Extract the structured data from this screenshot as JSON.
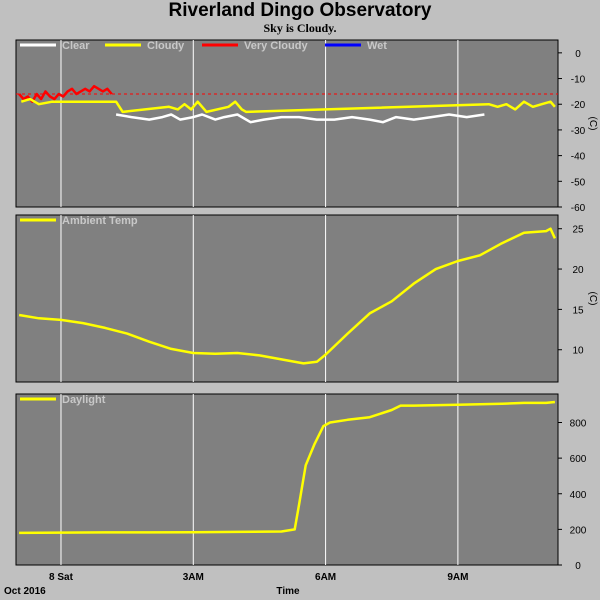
{
  "header": {
    "title": "Riverland Dingo Observatory",
    "subtitle": "Sky is Cloudy."
  },
  "colors": {
    "panel_bg": "#808080",
    "page_bg": "#c0c0c0",
    "clear": "#ffffff",
    "cloudy": "#ffff00",
    "very_cloudy": "#ff0000",
    "wet": "#0000ff",
    "ambient": "#ffff00",
    "daylight": "#ffff00",
    "grid": "#ffffff",
    "threshold": "#ff0000"
  },
  "x_axis": {
    "label": "Time",
    "date_label": "Oct 2016",
    "ticks": [
      {
        "t": 0,
        "label": "8 Sat"
      },
      {
        "t": 3,
        "label": "3AM"
      },
      {
        "t": 6,
        "label": "6AM"
      },
      {
        "t": 9,
        "label": "9AM"
      }
    ],
    "range_hours": [
      -1.02,
      11.27
    ]
  },
  "chart_data": [
    {
      "type": "line",
      "legend": [
        "Clear",
        "Cloudy",
        "Very Cloudy",
        "Wet"
      ],
      "unit": "(C)",
      "ylim": [
        -60,
        5
      ],
      "yticks": [
        0,
        -10,
        -20,
        -30,
        -40,
        -50,
        -60
      ],
      "threshold": -16,
      "series": [
        {
          "name": "Very Cloudy",
          "x": [
            -0.95,
            -0.85,
            -0.75,
            -0.65,
            -0.55,
            -0.45,
            -0.35,
            -0.25,
            -0.15,
            -0.05,
            0.05,
            0.15,
            0.25,
            0.35,
            0.45,
            0.55,
            0.65,
            0.75,
            0.85,
            0.95,
            1.05,
            1.15
          ],
          "y": [
            -16,
            -18,
            -17,
            -19,
            -16,
            -18,
            -15,
            -17,
            -18,
            -16,
            -17,
            -15,
            -14,
            -16,
            -15,
            -14,
            -15,
            -13,
            -14,
            -15,
            -14,
            -16
          ]
        },
        {
          "name": "Cloudy",
          "x": [
            -0.9,
            -0.7,
            -0.5,
            -0.2,
            1.25,
            1.4,
            2.45,
            2.65,
            2.8,
            2.95,
            3.1,
            3.3,
            3.8,
            3.95,
            4.1,
            4.2,
            9.7,
            9.9,
            10.1,
            10.3,
            10.5,
            10.7,
            10.9,
            11.1,
            11.2
          ],
          "y": [
            -19,
            -18,
            -20,
            -19,
            -19,
            -23,
            -21,
            -22,
            -20,
            -22,
            -19,
            -23,
            -21,
            -19,
            -22,
            -23,
            -20,
            -21,
            -20,
            -22,
            -19,
            -21,
            -20,
            -19,
            -21
          ]
        },
        {
          "name": "Clear",
          "x": [
            1.25,
            1.6,
            2.0,
            2.3,
            2.5,
            2.7,
            3.0,
            3.2,
            3.5,
            3.7,
            4.0,
            4.3,
            4.6,
            5.0,
            5.4,
            5.8,
            6.2,
            6.6,
            7.0,
            7.3,
            7.6,
            8.0,
            8.4,
            8.8,
            9.2,
            9.6
          ],
          "y": [
            -24,
            -25,
            -26,
            -25,
            -24,
            -26,
            -25,
            -24,
            -26,
            -25,
            -24,
            -27,
            -26,
            -25,
            -25,
            -26,
            -26,
            -25,
            -26,
            -27,
            -25,
            -26,
            -25,
            -24,
            -25,
            -24
          ]
        },
        {
          "name": "Wet",
          "x": [],
          "y": []
        }
      ]
    },
    {
      "type": "line",
      "legend": [
        "Ambient Temp"
      ],
      "unit": "(C)",
      "ylim": [
        6,
        26.7
      ],
      "yticks": [
        25,
        20,
        15,
        10
      ],
      "series": [
        {
          "name": "Ambient Temp",
          "x": [
            -0.95,
            -0.5,
            0,
            0.5,
            1,
            1.5,
            2,
            2.5,
            3,
            3.5,
            4,
            4.5,
            5,
            5.5,
            5.8,
            6,
            6.5,
            7,
            7.5,
            8,
            8.5,
            9,
            9.5,
            10,
            10.5,
            11,
            11.1,
            11.2
          ],
          "y": [
            14.3,
            13.9,
            13.7,
            13.3,
            12.7,
            12.0,
            11.0,
            10.1,
            9.6,
            9.5,
            9.6,
            9.3,
            8.8,
            8.3,
            8.5,
            9.4,
            12.0,
            14.5,
            16.0,
            18.2,
            20.0,
            21.0,
            21.7,
            23.2,
            24.5,
            24.7,
            25.0,
            23.8
          ]
        }
      ]
    },
    {
      "type": "line",
      "legend": [
        "Daylight"
      ],
      "unit": "",
      "ylim": [
        0,
        960
      ],
      "yticks": [
        800,
        600,
        400,
        200,
        0
      ],
      "series": [
        {
          "name": "Daylight",
          "x": [
            -0.95,
            0,
            1,
            2,
            3,
            4,
            5,
            5.3,
            5.4,
            5.55,
            5.75,
            5.95,
            6.1,
            6.5,
            7,
            7.5,
            7.7,
            8,
            9,
            10,
            10.5,
            11,
            11.2
          ],
          "y": [
            180,
            182,
            183,
            183,
            184,
            186,
            188,
            200,
            340,
            560,
            680,
            780,
            800,
            815,
            830,
            870,
            895,
            895,
            900,
            905,
            910,
            910,
            915
          ]
        }
      ]
    }
  ]
}
